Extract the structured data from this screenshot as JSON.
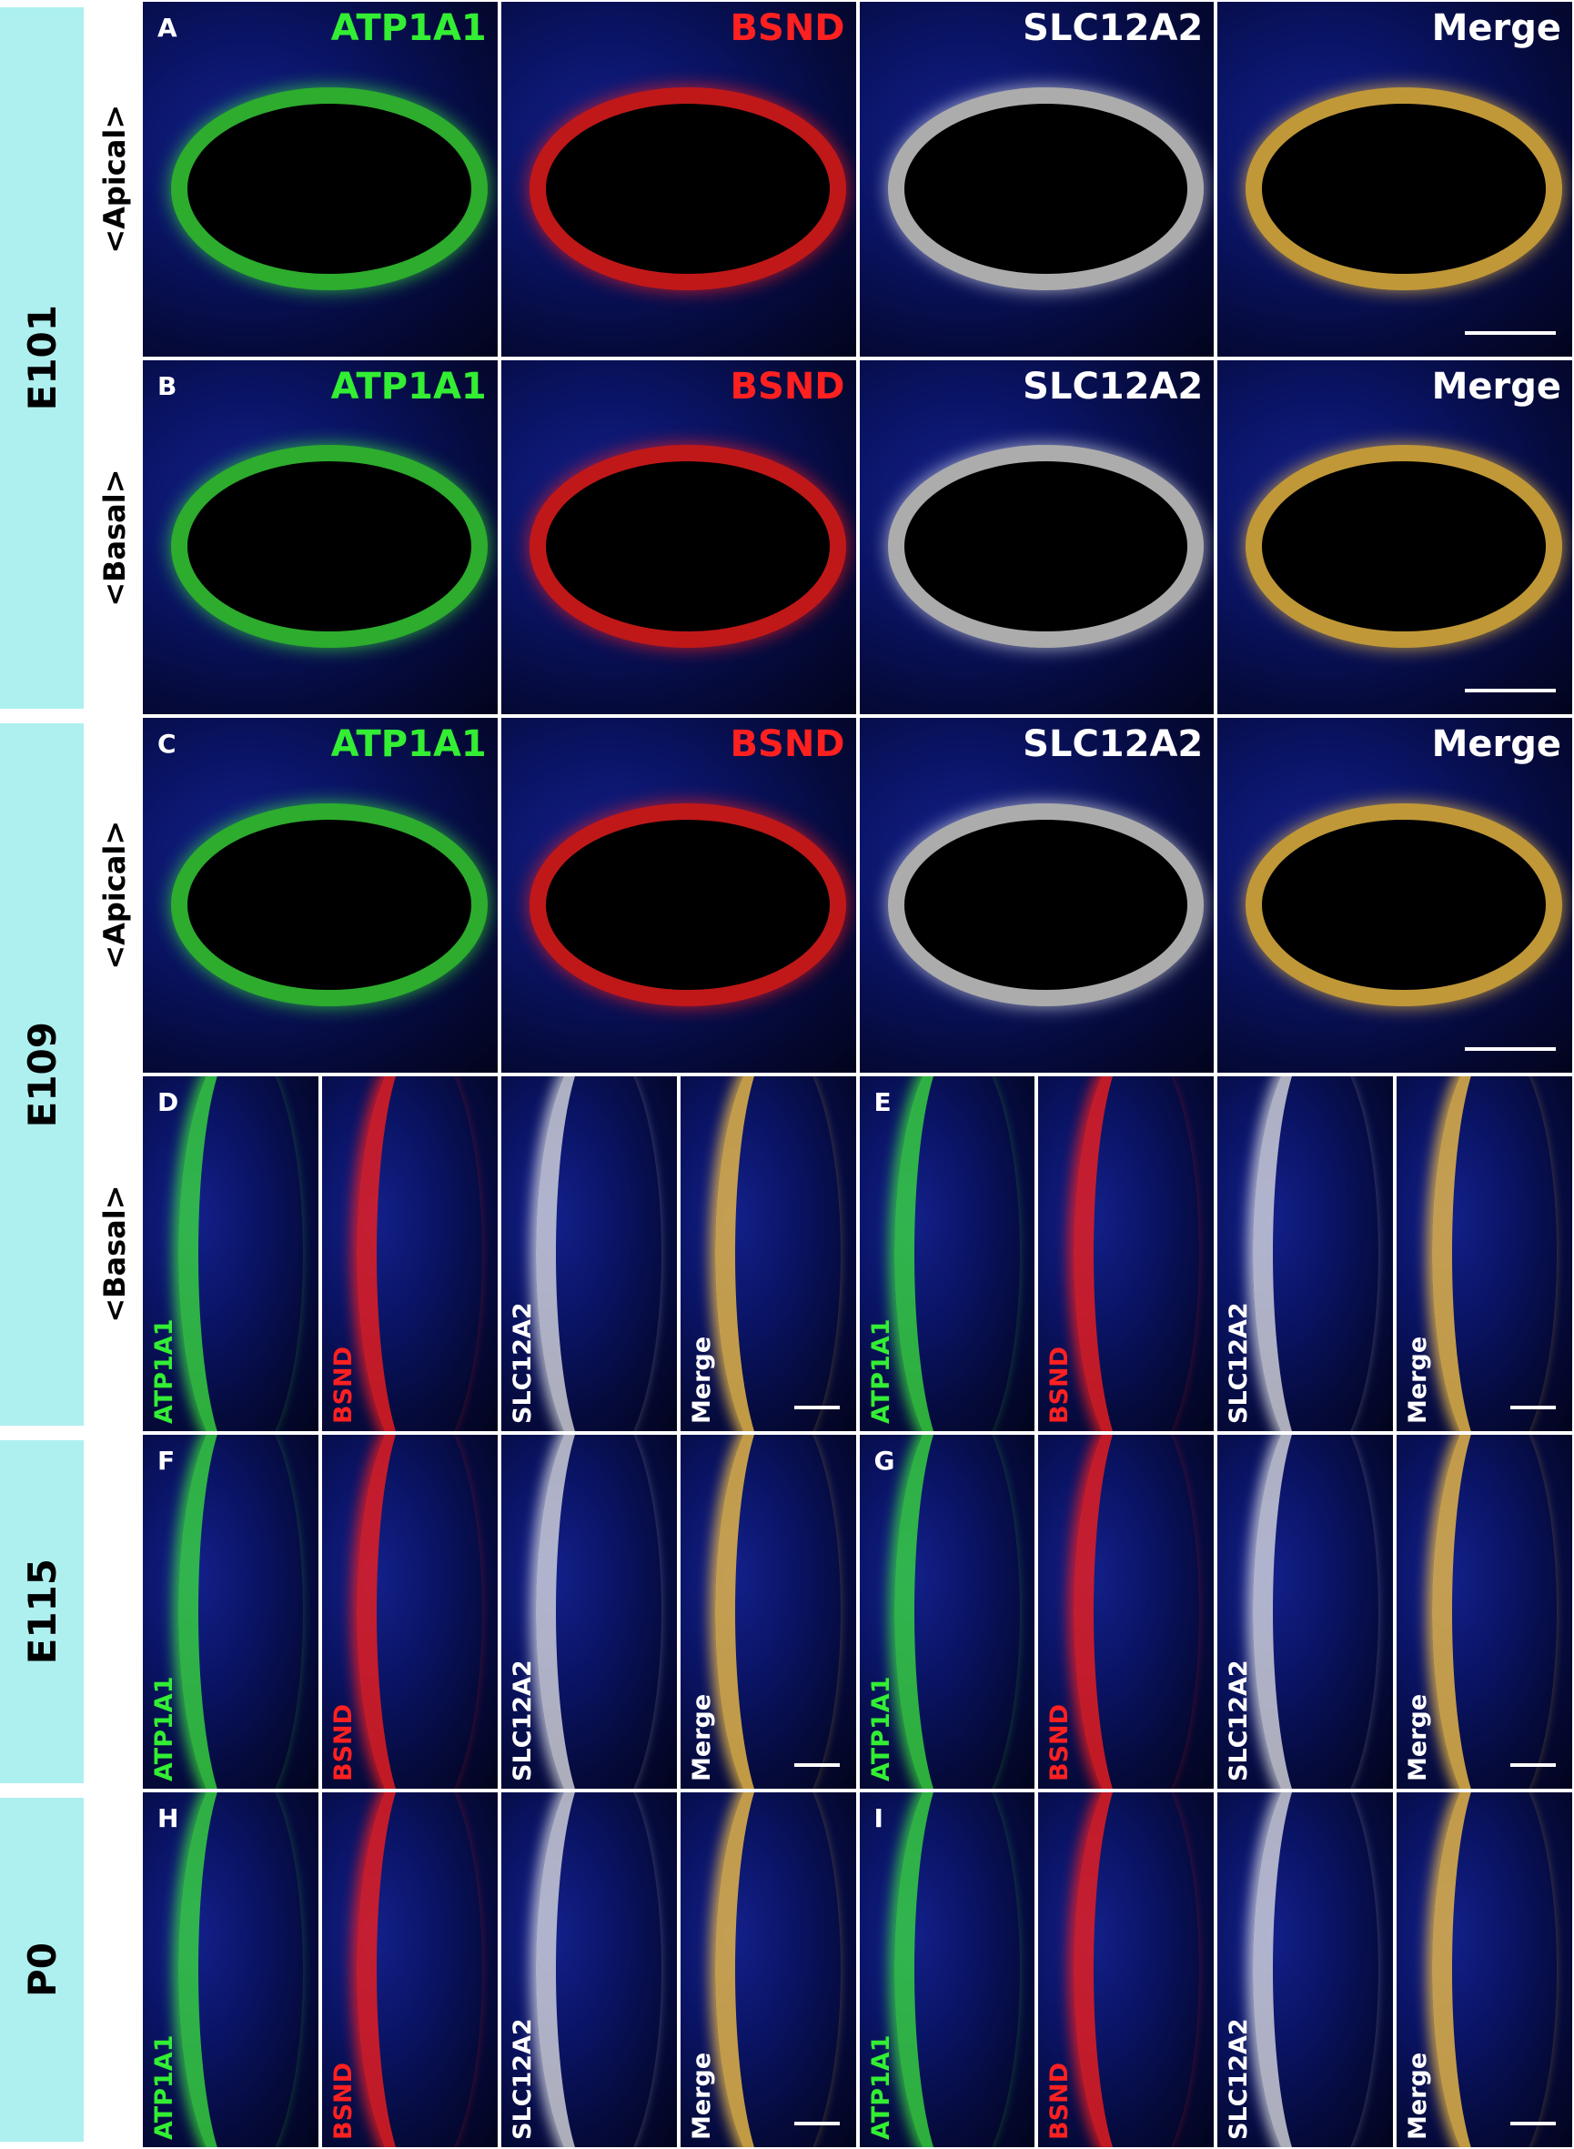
{
  "stages": [
    {
      "label": "E101",
      "rows": [
        {
          "orientation": "<Apical>",
          "panels": [
            {
              "letter": "A",
              "channels": [
                "ATP1A1",
                "BSND",
                "SLC12A2",
                "Merge"
              ]
            }
          ]
        },
        {
          "orientation": "<Basal>",
          "panels": [
            {
              "letter": "B",
              "channels": [
                "ATP1A1",
                "BSND",
                "SLC12A2",
                "Merge"
              ]
            }
          ]
        }
      ]
    },
    {
      "label": "E109",
      "rows": [
        {
          "orientation": "<Apical>",
          "panels": [
            {
              "letter": "C",
              "channels": [
                "ATP1A1",
                "BSND",
                "SLC12A2",
                "Merge"
              ]
            }
          ]
        },
        {
          "orientation": "<Basal>",
          "panels": [
            {
              "letter": "D",
              "channels": [
                "ATP1A1",
                "BSND",
                "SLC12A2",
                "Merge"
              ]
            },
            {
              "letter": "E",
              "channels": [
                "ATP1A1",
                "BSND",
                "SLC12A2",
                "Merge"
              ]
            }
          ]
        }
      ]
    },
    {
      "label": "E115",
      "rows": [
        {
          "panels": [
            {
              "letter": "F",
              "channels": [
                "ATP1A1",
                "BSND",
                "SLC12A2",
                "Merge"
              ]
            },
            {
              "letter": "G",
              "channels": [
                "ATP1A1",
                "BSND",
                "SLC12A2",
                "Merge"
              ]
            }
          ]
        }
      ]
    },
    {
      "label": "P0",
      "rows": [
        {
          "panels": [
            {
              "letter": "H",
              "channels": [
                "ATP1A1",
                "BSND",
                "SLC12A2",
                "Merge"
              ]
            },
            {
              "letter": "I",
              "channels": [
                "ATP1A1",
                "BSND",
                "SLC12A2",
                "Merge"
              ]
            }
          ]
        }
      ]
    }
  ]
}
